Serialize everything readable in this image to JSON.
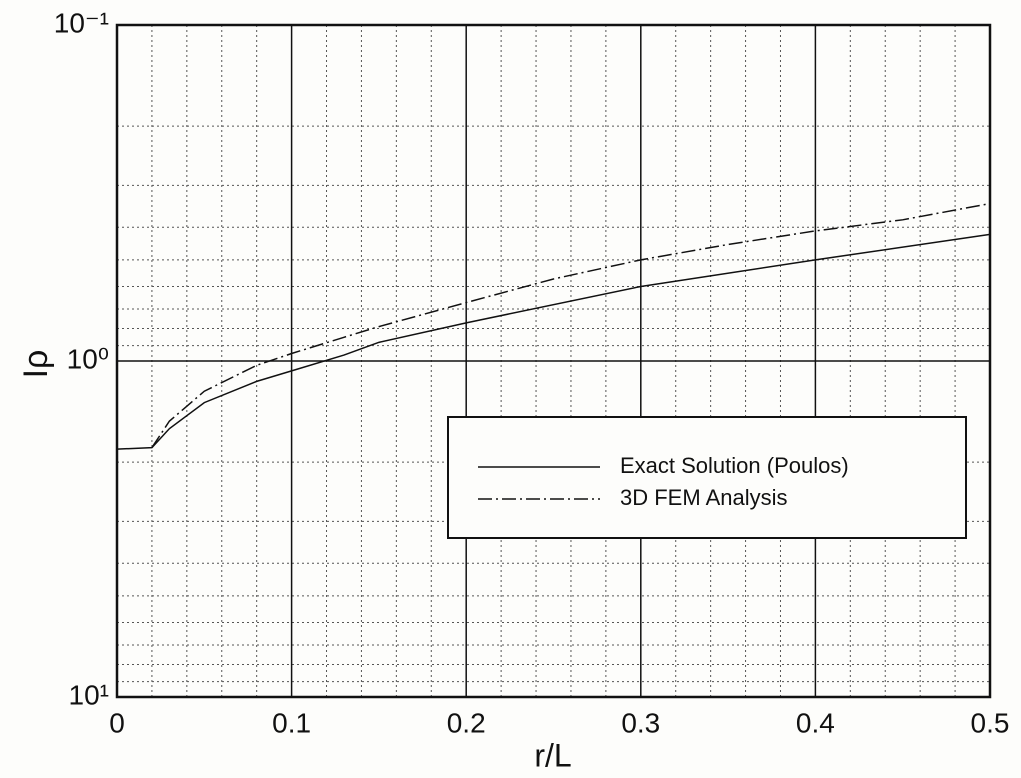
{
  "chart_data": {
    "type": "line",
    "x_label": "r/L",
    "y_label": "Iρ",
    "xlim": [
      0,
      0.5
    ],
    "xticks": [
      0,
      0.1,
      0.2,
      0.3,
      0.4,
      0.5
    ],
    "xminorticks": [
      0.02,
      0.04,
      0.06,
      0.08,
      0.12,
      0.14,
      0.16,
      0.18,
      0.22,
      0.24,
      0.26,
      0.28,
      0.32,
      0.34,
      0.36,
      0.38,
      0.42,
      0.44,
      0.46,
      0.48
    ],
    "ylim": [
      10,
      0.1
    ],
    "ylog": true,
    "yticks": [
      {
        "value": 0.1,
        "label": "10⁻¹"
      },
      {
        "value": 1,
        "label": "10⁰"
      },
      {
        "value": 10,
        "label": "10¹"
      }
    ],
    "yminorticks": [
      0.2,
      0.3,
      0.4,
      0.5,
      0.6,
      0.7,
      0.8,
      0.9,
      2,
      3,
      4,
      5,
      6,
      7,
      8,
      9
    ],
    "grid": true,
    "legend": "lower right",
    "series": [
      {
        "name": "Exact  Solution (Poulos)",
        "color": "#111111",
        "dash": "solid",
        "x": [
          0,
          0.02,
          0.03,
          0.05,
          0.08,
          0.1,
          0.13,
          0.15,
          0.2,
          0.3,
          0.4,
          0.5
        ],
        "values": [
          1.83,
          1.81,
          1.59,
          1.33,
          1.15,
          1.07,
          0.96,
          0.88,
          0.77,
          0.6,
          0.5,
          0.42
        ]
      },
      {
        "name": "3D FEM Analysis",
        "color": "#111111",
        "dash": "dashdot",
        "x": [
          0.02,
          0.03,
          0.05,
          0.08,
          0.1,
          0.13,
          0.15,
          0.2,
          0.25,
          0.3,
          0.35,
          0.4,
          0.45,
          0.5
        ],
        "values": [
          1.81,
          1.51,
          1.23,
          1.03,
          0.95,
          0.85,
          0.79,
          0.67,
          0.57,
          0.5,
          0.45,
          0.41,
          0.38,
          0.34
        ]
      }
    ]
  }
}
